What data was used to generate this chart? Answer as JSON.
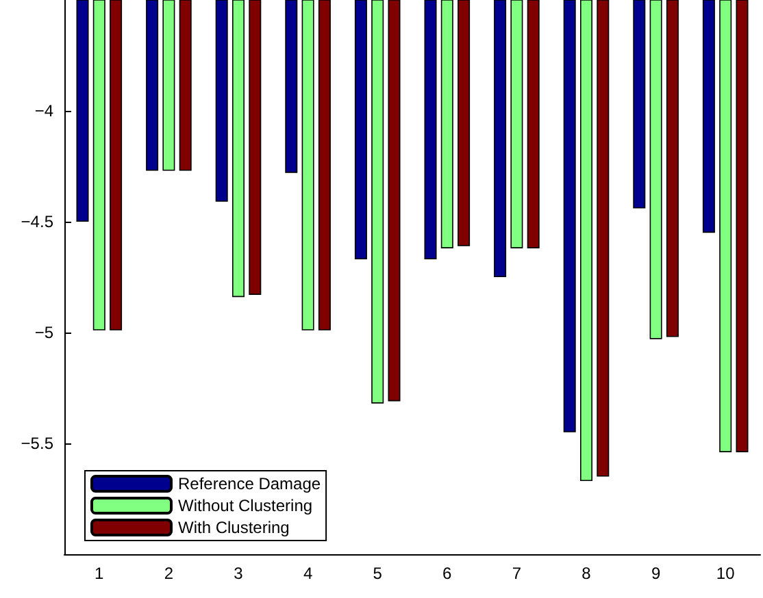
{
  "chart_data": {
    "type": "bar",
    "categories": [
      "1",
      "2",
      "3",
      "4",
      "5",
      "6",
      "7",
      "8",
      "9",
      "10"
    ],
    "series": [
      {
        "name": "Reference Damage",
        "color": "#00008f",
        "values": [
          -4.5,
          -4.27,
          -4.41,
          -4.28,
          -4.67,
          -4.67,
          -4.75,
          -5.45,
          -4.44,
          -4.55
        ]
      },
      {
        "name": "Without Clustering",
        "color": "#80ff80",
        "values": [
          -4.99,
          -4.27,
          -4.84,
          -4.99,
          -5.32,
          -4.62,
          -4.62,
          -5.67,
          -5.03,
          -5.54
        ]
      },
      {
        "name": "With Clustering",
        "color": "#800000",
        "values": [
          -4.99,
          -4.27,
          -4.83,
          -4.99,
          -5.31,
          -4.61,
          -4.62,
          -5.65,
          -5.02,
          -5.54
        ]
      }
    ],
    "ylim": [
      -6,
      -3.5
    ],
    "yticks": [
      -5.5,
      -5,
      -4.5,
      -4
    ],
    "grid": false,
    "legend": "bottom left"
  }
}
